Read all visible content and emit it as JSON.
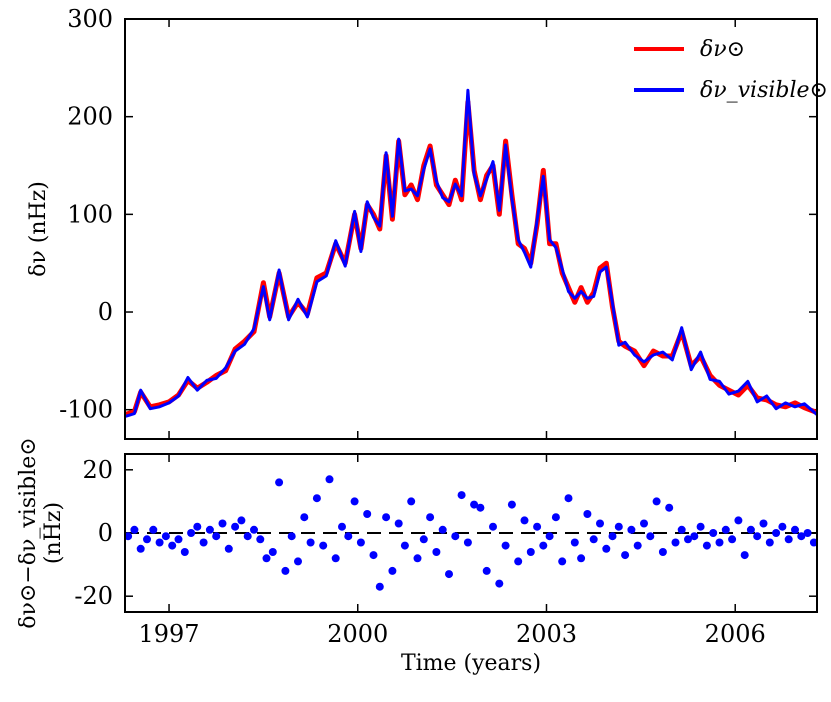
{
  "chart_data": [
    {
      "type": "line",
      "panel": "top",
      "xlim": [
        1996.3,
        2007.3
      ],
      "ylim": [
        -130,
        300
      ],
      "yticks": [
        300,
        200,
        100,
        0,
        -100
      ],
      "ytick_labels": [
        "300",
        "200",
        "100",
        "0",
        "-100"
      ],
      "ylabel": "δν (nHz)",
      "legend_position": "upper-right",
      "x": [
        1996.3,
        1996.45,
        1996.55,
        1996.7,
        1996.85,
        1997.0,
        1997.15,
        1997.3,
        1997.45,
        1997.6,
        1997.75,
        1997.9,
        1998.05,
        1998.2,
        1998.35,
        1998.5,
        1998.6,
        1998.75,
        1998.9,
        1999.05,
        1999.2,
        1999.35,
        1999.5,
        1999.65,
        1999.8,
        1999.95,
        2000.05,
        2000.15,
        2000.25,
        2000.35,
        2000.45,
        2000.55,
        2000.65,
        2000.75,
        2000.85,
        2000.95,
        2001.05,
        2001.15,
        2001.25,
        2001.35,
        2001.45,
        2001.55,
        2001.65,
        2001.75,
        2001.85,
        2001.95,
        2002.05,
        2002.15,
        2002.25,
        2002.35,
        2002.45,
        2002.55,
        2002.65,
        2002.75,
        2002.85,
        2002.95,
        2003.05,
        2003.15,
        2003.25,
        2003.35,
        2003.45,
        2003.55,
        2003.65,
        2003.75,
        2003.85,
        2003.95,
        2004.05,
        2004.15,
        2004.25,
        2004.4,
        2004.55,
        2004.7,
        2004.85,
        2005.0,
        2005.15,
        2005.3,
        2005.45,
        2005.6,
        2005.75,
        2005.9,
        2006.05,
        2006.2,
        2006.35,
        2006.5,
        2006.65,
        2006.8,
        2006.95,
        2007.1,
        2007.3
      ],
      "series": [
        {
          "name": "δν⊙",
          "color": "#ff0000",
          "values": [
            -105,
            -102,
            -82,
            -97,
            -95,
            -92,
            -85,
            -70,
            -78,
            -72,
            -65,
            -60,
            -38,
            -30,
            -20,
            30,
            -5,
            40,
            -5,
            10,
            -2,
            35,
            40,
            70,
            50,
            100,
            65,
            110,
            100,
            85,
            160,
            95,
            175,
            120,
            130,
            115,
            150,
            170,
            130,
            120,
            110,
            135,
            115,
            215,
            145,
            115,
            140,
            150,
            100,
            175,
            120,
            70,
            65,
            50,
            90,
            145,
            70,
            70,
            40,
            25,
            10,
            25,
            10,
            20,
            45,
            50,
            5,
            -30,
            -35,
            -40,
            -55,
            -40,
            -45,
            -45,
            -20,
            -55,
            -45,
            -65,
            -75,
            -80,
            -85,
            -75,
            -88,
            -90,
            -95,
            -97,
            -93,
            -98,
            -103
          ]
        },
        {
          "name": "δν_visible⊙",
          "color": "#0000ff",
          "values": [
            -107,
            -104,
            -80,
            -99,
            -97,
            -93,
            -86,
            -67,
            -80,
            -70,
            -68,
            -57,
            -40,
            -33,
            -17,
            26,
            -8,
            43,
            -8,
            13,
            -5,
            31,
            37,
            73,
            47,
            103,
            62,
            113,
            97,
            88,
            163,
            98,
            177,
            124,
            126,
            119,
            146,
            167,
            134,
            117,
            113,
            131,
            119,
            227,
            141,
            119,
            136,
            154,
            104,
            171,
            116,
            74,
            61,
            46,
            94,
            139,
            74,
            66,
            44,
            21,
            14,
            21,
            14,
            16,
            41,
            46,
            9,
            -34,
            -31,
            -44,
            -51,
            -44,
            -41,
            -49,
            -16,
            -59,
            -41,
            -69,
            -71,
            -84,
            -81,
            -71,
            -92,
            -86,
            -99,
            -93,
            -97,
            -94,
            -105
          ]
        }
      ]
    },
    {
      "type": "scatter",
      "panel": "bottom",
      "xlim": [
        1996.3,
        2007.3
      ],
      "ylim": [
        -25,
        25
      ],
      "yticks": [
        20,
        0,
        -20
      ],
      "ytick_labels": [
        "20",
        "0",
        "-20"
      ],
      "xticks": [
        1997,
        2000,
        2003,
        2006
      ],
      "xtick_labels": [
        "1997",
        "2000",
        "2003",
        "2006"
      ],
      "xlabel": "Time (years)",
      "ylabel_line1": "δν⊙−δν_visible⊙",
      "ylabel_line2": "(nHz)",
      "reference_line": 0,
      "color": "#0000ff",
      "x": [
        1996.35,
        1996.45,
        1996.55,
        1996.65,
        1996.75,
        1996.85,
        1996.95,
        1997.05,
        1997.15,
        1997.25,
        1997.35,
        1997.45,
        1997.55,
        1997.65,
        1997.75,
        1997.85,
        1997.95,
        1998.05,
        1998.15,
        1998.25,
        1998.35,
        1998.45,
        1998.55,
        1998.65,
        1998.75,
        1998.85,
        1998.95,
        1999.05,
        1999.15,
        1999.25,
        1999.35,
        1999.45,
        1999.55,
        1999.65,
        1999.75,
        1999.85,
        1999.95,
        2000.05,
        2000.15,
        2000.25,
        2000.35,
        2000.45,
        2000.55,
        2000.65,
        2000.75,
        2000.85,
        2000.95,
        2001.05,
        2001.15,
        2001.25,
        2001.35,
        2001.45,
        2001.55,
        2001.65,
        2001.75,
        2001.85,
        2001.95,
        2002.05,
        2002.15,
        2002.25,
        2002.35,
        2002.45,
        2002.55,
        2002.65,
        2002.75,
        2002.85,
        2002.95,
        2003.05,
        2003.15,
        2003.25,
        2003.35,
        2003.45,
        2003.55,
        2003.65,
        2003.75,
        2003.85,
        2003.95,
        2004.05,
        2004.15,
        2004.25,
        2004.35,
        2004.45,
        2004.55,
        2004.65,
        2004.75,
        2004.85,
        2004.95,
        2005.05,
        2005.15,
        2005.25,
        2005.35,
        2005.45,
        2005.55,
        2005.65,
        2005.75,
        2005.85,
        2005.95,
        2006.05,
        2006.15,
        2006.25,
        2006.35,
        2006.45,
        2006.55,
        2006.65,
        2006.75,
        2006.85,
        2006.95,
        2007.05,
        2007.15,
        2007.25
      ],
      "values": [
        -1,
        1,
        -5,
        -2,
        1,
        -3,
        -1,
        -4,
        -2,
        -6,
        0,
        2,
        -3,
        1,
        -1,
        3,
        -5,
        2,
        4,
        -1,
        1,
        -2,
        -8,
        -6,
        16,
        -12,
        -1,
        -9,
        5,
        -3,
        11,
        -4,
        17,
        -8,
        2,
        -1,
        10,
        -3,
        6,
        -7,
        -17,
        5,
        -12,
        3,
        -4,
        10,
        -8,
        -2,
        5,
        -6,
        1,
        -13,
        -1,
        12,
        -3,
        9,
        8,
        -12,
        2,
        -16,
        -4,
        9,
        -9,
        4,
        -6,
        2,
        -4,
        -1,
        5,
        -9,
        11,
        -3,
        -8,
        6,
        -2,
        3,
        -5,
        -1,
        2,
        -7,
        1,
        -4,
        3,
        -1,
        10,
        -6,
        8,
        -3,
        1,
        -2,
        -1,
        2,
        -4,
        0,
        -3,
        1,
        -2,
        4,
        -7,
        1,
        -1,
        3,
        -3,
        0,
        2,
        -2,
        1,
        -1,
        0,
        -3
      ]
    }
  ]
}
